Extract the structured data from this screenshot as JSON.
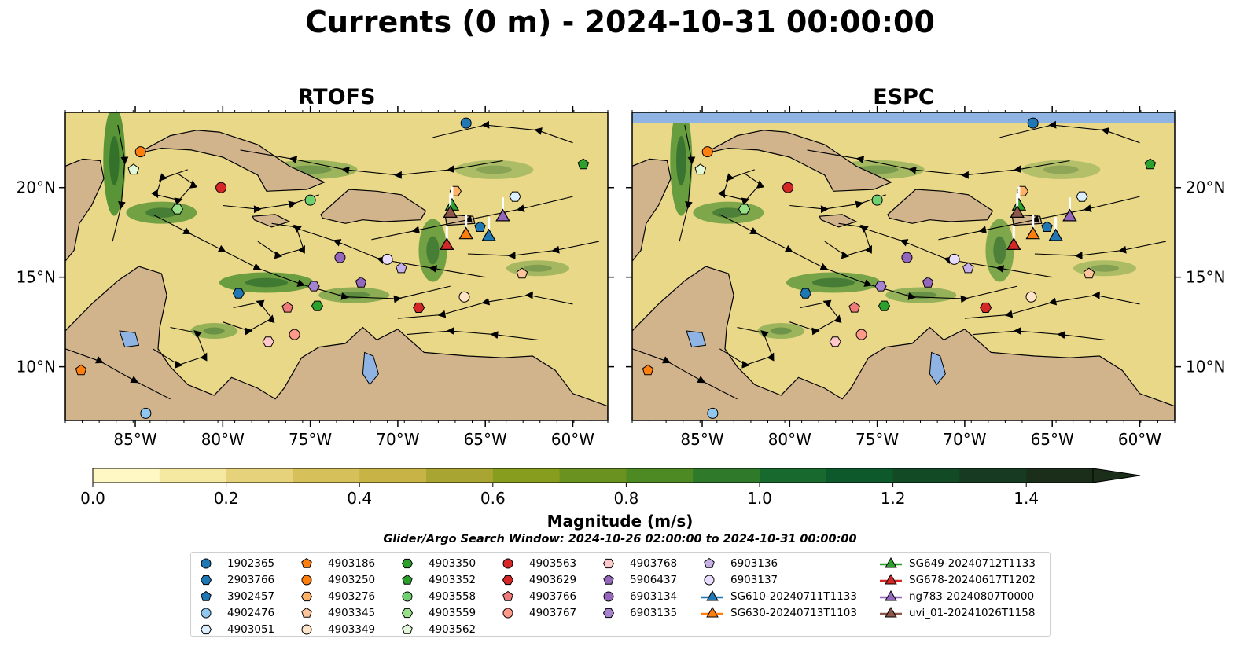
{
  "title": "Currents (0 m) - 2024-10-31 00:00:00",
  "panels": [
    {
      "title": "RTOFS"
    },
    {
      "title": "ESPC"
    }
  ],
  "map": {
    "lon_range": [
      -89,
      -58
    ],
    "lat_range": [
      7,
      24.2
    ],
    "x_ticks": [
      {
        "v": -85,
        "label": "85°W"
      },
      {
        "v": -80,
        "label": "80°W"
      },
      {
        "v": -75,
        "label": "75°W"
      },
      {
        "v": -70,
        "label": "70°W"
      },
      {
        "v": -65,
        "label": "65°W"
      },
      {
        "v": -60,
        "label": "60°W"
      }
    ],
    "y_ticks": [
      {
        "v": 10,
        "label": "10°N"
      },
      {
        "v": 15,
        "label": "15°N"
      },
      {
        "v": 20,
        "label": "20°N"
      }
    ]
  },
  "colors": {
    "land": "#d2b48c",
    "water_low": "#fff7bc",
    "water_high": "#1a2e1a",
    "lake": "#8fb4e3"
  },
  "colorbar": {
    "label": "Magnitude (m/s)",
    "min": 0.0,
    "max": 1.5,
    "extend": "max",
    "ticks": [
      {
        "v": 0.0,
        "label": "0.0"
      },
      {
        "v": 0.2,
        "label": "0.2"
      },
      {
        "v": 0.4,
        "label": "0.4"
      },
      {
        "v": 0.6,
        "label": "0.6"
      },
      {
        "v": 0.8,
        "label": "0.8"
      },
      {
        "v": 1.0,
        "label": "1.0"
      },
      {
        "v": 1.2,
        "label": "1.2"
      },
      {
        "v": 1.4,
        "label": "1.4"
      }
    ],
    "bins": [
      "#fff8c4",
      "#f5e8a0",
      "#e6d27a",
      "#d6c05a",
      "#c8b446",
      "#a9a532",
      "#879d1e",
      "#6a9220",
      "#4d8a24",
      "#2f7a2a",
      "#17692d",
      "#0d592b",
      "#124a26",
      "#163b22",
      "#1a2e1a"
    ]
  },
  "search_window": "Glider/Argo Search Window: 2024-10-26 02:00:00 to 2024-10-31 00:00:00",
  "floats": [
    {
      "id": "1902365",
      "marker": "circle",
      "color": "#1f77b4",
      "lon": -66.1,
      "lat": 23.6
    },
    {
      "id": "2903766",
      "marker": "hexagon",
      "color": "#1f77b4",
      "lon": -79.1,
      "lat": 14.1
    },
    {
      "id": "3902457",
      "marker": "pentagon",
      "color": "#1f77b4",
      "lon": -65.3,
      "lat": 17.8
    },
    {
      "id": "4902476",
      "marker": "circle",
      "color": "#8fc7ee",
      "lon": -84.4,
      "lat": 7.4
    },
    {
      "id": "4903051",
      "marker": "hexagon",
      "color": "#dcefff",
      "lon": -63.3,
      "lat": 19.5
    },
    {
      "id": "4903186",
      "marker": "pentagon",
      "color": "#ff7f0e",
      "lon": -88.1,
      "lat": 9.8
    },
    {
      "id": "4903250",
      "marker": "circle",
      "color": "#ff7f0e",
      "lon": -84.7,
      "lat": 22.0
    },
    {
      "id": "4903276",
      "marker": "hexagon",
      "color": "#ffb266",
      "lon": -66.7,
      "lat": 19.8
    },
    {
      "id": "4903345",
      "marker": "pentagon",
      "color": "#ffc59a",
      "lon": -62.9,
      "lat": 15.2
    },
    {
      "id": "4903349",
      "marker": "circle",
      "color": "#ffe4c8",
      "lon": -66.2,
      "lat": 13.9
    },
    {
      "id": "4903350",
      "marker": "hexagon",
      "color": "#2ca02c",
      "lon": -74.6,
      "lat": 13.4
    },
    {
      "id": "4903352",
      "marker": "pentagon",
      "color": "#2ca02c",
      "lon": -59.4,
      "lat": 21.3
    },
    {
      "id": "4903558",
      "marker": "circle",
      "color": "#6fd06f",
      "lon": -75.0,
      "lat": 19.3
    },
    {
      "id": "4903559",
      "marker": "hexagon",
      "color": "#98df8a",
      "lon": -82.6,
      "lat": 18.8
    },
    {
      "id": "4903562",
      "marker": "pentagon",
      "color": "#e3f8d8",
      "lon": -85.1,
      "lat": 21.0
    },
    {
      "id": "4903563",
      "marker": "circle",
      "color": "#d62728",
      "lon": -80.1,
      "lat": 20.0
    },
    {
      "id": "4903629",
      "marker": "hexagon",
      "color": "#d62728",
      "lon": -68.8,
      "lat": 13.3
    },
    {
      "id": "4903766",
      "marker": "pentagon",
      "color": "#f07a7a",
      "lon": -76.3,
      "lat": 13.3
    },
    {
      "id": "4903767",
      "marker": "circle",
      "color": "#ff9a8a",
      "lon": -75.9,
      "lat": 11.8
    },
    {
      "id": "4903768",
      "marker": "hexagon",
      "color": "#ffc9c9",
      "lon": -77.4,
      "lat": 11.4
    },
    {
      "id": "5906437",
      "marker": "pentagon",
      "color": "#9467bd",
      "lon": -72.1,
      "lat": 14.7
    },
    {
      "id": "6903134",
      "marker": "circle",
      "color": "#9467bd",
      "lon": -73.3,
      "lat": 16.1
    },
    {
      "id": "6903135",
      "marker": "hexagon",
      "color": "#a583d0",
      "lon": -74.8,
      "lat": 14.5
    },
    {
      "id": "6903136",
      "marker": "pentagon",
      "color": "#c5b0e8",
      "lon": -69.8,
      "lat": 15.5
    },
    {
      "id": "6903137",
      "marker": "circle",
      "color": "#e8dcff",
      "lon": -70.6,
      "lat": 16.0
    }
  ],
  "gliders": [
    {
      "id": "SG610-20240711T1133",
      "color": "#1f77b4",
      "lon": -64.8,
      "lat": 17.3
    },
    {
      "id": "SG630-20240713T1103",
      "color": "#ff7f0e",
      "lon": -66.1,
      "lat": 17.4
    },
    {
      "id": "SG649-20240712T1133",
      "color": "#2ca02c",
      "lon": -66.9,
      "lat": 19.0
    },
    {
      "id": "SG678-20240617T1202",
      "color": "#d62728",
      "lon": -67.2,
      "lat": 16.8
    },
    {
      "id": "ng783-20240807T0000",
      "color": "#9467bd",
      "lon": -64.0,
      "lat": 18.4
    },
    {
      "id": "uvi_01-20241026T1158",
      "color": "#8c564b",
      "lon": -67.0,
      "lat": 18.6
    }
  ]
}
